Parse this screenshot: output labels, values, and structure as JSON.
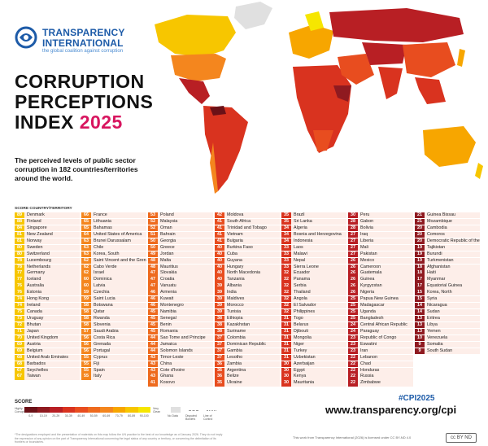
{
  "logo": {
    "line1": "TRANSPARENCY",
    "line2": "INTERNATIONAL",
    "tagline": "the global coalition against corruption"
  },
  "title": {
    "line1": "CORRUPTION",
    "line2": "PERCEPTIONS",
    "line3": "INDEX",
    "year": "2025"
  },
  "subtitle": "The perceived levels of public sector corruption in 182 countries/territories around the world.",
  "list_header": "SCORE  COUNTRY/TERRITORY",
  "colors": {
    "c90": "#f6e600",
    "c80": "#f7c600",
    "c70": "#f7a600",
    "c60": "#f4861e",
    "c50": "#ee6a1e",
    "c40": "#e84d1f",
    "c30": "#d9331f",
    "c20": "#b81f24",
    "c10": "#8f1a20",
    "c00": "#6b1117"
  },
  "columns": [
    {
      "color": "c80",
      "rows": [
        [
          "89",
          "Denmark"
        ],
        [
          "88",
          "Finland"
        ],
        [
          "84",
          "Singapore"
        ],
        [
          "81",
          "New Zealand"
        ],
        [
          "81",
          "Norway"
        ],
        [
          "80",
          "Sweden"
        ],
        [
          "80",
          "Switzerland"
        ],
        [
          "78",
          "Luxembourg"
        ],
        [
          "78",
          "Netherlands"
        ],
        [
          "77",
          "Germany"
        ],
        [
          "77",
          "Iceland"
        ],
        [
          "76",
          "Australia"
        ],
        [
          "76",
          "Estonia"
        ],
        [
          "74",
          "Hong Kong"
        ],
        [
          "74",
          "Ireland"
        ],
        [
          "75",
          "Canada"
        ],
        [
          "73",
          "Uruguay"
        ],
        [
          "72",
          "Bhutan"
        ],
        [
          "71",
          "Japan"
        ],
        [
          "70",
          "United Kingdom"
        ],
        [
          "69",
          "Austria"
        ],
        [
          "69",
          "Belgium"
        ],
        [
          "68",
          "United Arab Emirates"
        ],
        [
          "68",
          "Barbados"
        ],
        [
          "67",
          "Seychelles"
        ],
        [
          "67",
          "Taiwan"
        ]
      ]
    },
    {
      "color": "c60",
      "rows": [
        [
          "66",
          "France"
        ],
        [
          "65",
          "Lithuania"
        ],
        [
          "65",
          "Bahamas"
        ],
        [
          "64",
          "United States of America"
        ],
        [
          "63",
          "Brunei Darussalam"
        ],
        [
          "63",
          "Chile"
        ],
        [
          "63",
          "Korea, South"
        ],
        [
          "62",
          "Saint Vincent and the Grenadines"
        ],
        [
          "62",
          "Cabo Verde"
        ],
        [
          "62",
          "Israel"
        ],
        [
          "60",
          "Dominica"
        ],
        [
          "60",
          "Latvia"
        ],
        [
          "59",
          "Czechia"
        ],
        [
          "59",
          "Saint Lucia"
        ],
        [
          "58",
          "Botswana"
        ],
        [
          "58",
          "Qatar"
        ],
        [
          "58",
          "Rwanda"
        ],
        [
          "58",
          "Slovenia"
        ],
        [
          "57",
          "Saudi Arabia"
        ],
        [
          "56",
          "Costa Rica"
        ],
        [
          "56",
          "Grenada"
        ],
        [
          "56",
          "Portugal"
        ],
        [
          "55",
          "Cyprus"
        ],
        [
          "55",
          "Fiji"
        ],
        [
          "55",
          "Spain"
        ],
        [
          "55",
          "Italy"
        ]
      ]
    },
    {
      "color": "c50",
      "rows": [
        [
          "53",
          "Poland"
        ],
        [
          "52",
          "Malaysia"
        ],
        [
          "52",
          "Oman"
        ],
        [
          "51",
          "Bahrain"
        ],
        [
          "50",
          "Georgia"
        ],
        [
          "50",
          "Greece"
        ],
        [
          "49",
          "Jordan"
        ],
        [
          "48",
          "Malta"
        ],
        [
          "48",
          "Mauritius"
        ],
        [
          "47",
          "Slovakia"
        ],
        [
          "47",
          "Croatia"
        ],
        [
          "47",
          "Vanuatu"
        ],
        [
          "46",
          "Armenia"
        ],
        [
          "46",
          "Kuwait"
        ],
        [
          "46",
          "Montenegro"
        ],
        [
          "45",
          "Namibia"
        ],
        [
          "45",
          "Senegal"
        ],
        [
          "45",
          "Benin"
        ],
        [
          "45",
          "Romania"
        ],
        [
          "44",
          "Sao Tome and Principe"
        ],
        [
          "44",
          "Jamaica"
        ],
        [
          "44",
          "Solomon Islands"
        ],
        [
          "43",
          "Timor-Leste"
        ],
        [
          "43",
          "China"
        ],
        [
          "43",
          "Cote d'Ivoire"
        ],
        [
          "43",
          "Ghana"
        ],
        [
          "41",
          "Kosovo"
        ]
      ]
    },
    {
      "color": "c40",
      "rows": [
        [
          "42",
          "Moldova"
        ],
        [
          "41",
          "South Africa"
        ],
        [
          "41",
          "Trinidad and Tobago"
        ],
        [
          "41",
          "Vietnam"
        ],
        [
          "41",
          "Bulgaria"
        ],
        [
          "40",
          "Burkina Faso"
        ],
        [
          "40",
          "Cuba"
        ],
        [
          "40",
          "Guyana"
        ],
        [
          "40",
          "Hungary"
        ],
        [
          "40",
          "North Macedonia"
        ],
        [
          "40",
          "Tanzania"
        ],
        [
          "39",
          "Albania"
        ],
        [
          "39",
          "India"
        ],
        [
          "39",
          "Maldives"
        ],
        [
          "39",
          "Morocco"
        ],
        [
          "39",
          "Tunisia"
        ],
        [
          "38",
          "Ethiopia"
        ],
        [
          "38",
          "Kazakhstan"
        ],
        [
          "38",
          "Suriname"
        ],
        [
          "37",
          "Colombia"
        ],
        [
          "37",
          "Dominican Republic"
        ],
        [
          "37",
          "Gambia"
        ],
        [
          "37",
          "Lesotho"
        ],
        [
          "36",
          "Zambia"
        ],
        [
          "36",
          "Argentina"
        ],
        [
          "36",
          "Belize"
        ],
        [
          "35",
          "Ukraine"
        ]
      ]
    },
    {
      "color": "c30",
      "rows": [
        [
          "35",
          "Brazil"
        ],
        [
          "35",
          "Sri Lanka"
        ],
        [
          "34",
          "Algeria"
        ],
        [
          "34",
          "Bosnia and Herzegovina"
        ],
        [
          "34",
          "Indonesia"
        ],
        [
          "33",
          "Laos"
        ],
        [
          "33",
          "Malawi"
        ],
        [
          "33",
          "Nepal"
        ],
        [
          "33",
          "Sierra Leone"
        ],
        [
          "32",
          "Ecuador"
        ],
        [
          "32",
          "Panama"
        ],
        [
          "32",
          "Serbia"
        ],
        [
          "32",
          "Thailand"
        ],
        [
          "32",
          "Angola"
        ],
        [
          "32",
          "El Salvador"
        ],
        [
          "32",
          "Philippines"
        ],
        [
          "31",
          "Togo"
        ],
        [
          "31",
          "Belarus"
        ],
        [
          "31",
          "Djibouti"
        ],
        [
          "31",
          "Mongolia"
        ],
        [
          "31",
          "Niger"
        ],
        [
          "31",
          "Turkey"
        ],
        [
          "31",
          "Uzbekistan"
        ],
        [
          "30",
          "Azerbaijan"
        ],
        [
          "30",
          "Egypt"
        ],
        [
          "30",
          "Kenya"
        ],
        [
          "30",
          "Mauritania"
        ]
      ]
    },
    {
      "color": "c20",
      "rows": [
        [
          "30",
          "Peru"
        ],
        [
          "28",
          "Gabon"
        ],
        [
          "28",
          "Bolivia"
        ],
        [
          "27",
          "Iraq"
        ],
        [
          "27",
          "Liberia"
        ],
        [
          "27",
          "Mali"
        ],
        [
          "27",
          "Pakistan"
        ],
        [
          "26",
          "Mexico"
        ],
        [
          "26",
          "Cameroon"
        ],
        [
          "26",
          "Guatemala"
        ],
        [
          "26",
          "Guinea"
        ],
        [
          "26",
          "Kyrgyzstan"
        ],
        [
          "26",
          "Nigeria"
        ],
        [
          "25",
          "Papua New Guinea"
        ],
        [
          "25",
          "Madagascar"
        ],
        [
          "25",
          "Uganda"
        ],
        [
          "25",
          "Bangladesh"
        ],
        [
          "24",
          "Central African Republic"
        ],
        [
          "24",
          "Paraguay"
        ],
        [
          "23",
          "Republic of Congo"
        ],
        [
          "23",
          "Eswatini"
        ],
        [
          "23",
          "Iran"
        ],
        [
          "22",
          "Lebanon"
        ],
        [
          "22",
          "Chad"
        ],
        [
          "22",
          "Honduras"
        ],
        [
          "22",
          "Russia"
        ],
        [
          "22",
          "Zimbabwe"
        ]
      ]
    },
    {
      "color": "c10",
      "rows": [
        [
          "21",
          "Guinea Bissau"
        ],
        [
          "21",
          "Mozambique"
        ],
        [
          "20",
          "Cambodia"
        ],
        [
          "20",
          "Comoros"
        ],
        [
          "20",
          "Democratic Republic of the Congo"
        ],
        [
          "19",
          "Tajikistan"
        ],
        [
          "19",
          "Burundi"
        ],
        [
          "19",
          "Turkmenistan"
        ],
        [
          "18",
          "Afghanistan"
        ],
        [
          "18",
          "Haiti"
        ],
        [
          "17",
          "Myanmar"
        ],
        [
          "17",
          "Equatorial Guinea"
        ],
        [
          "15",
          "Korea, North"
        ],
        [
          "15",
          "Syria"
        ],
        [
          "14",
          "Nicaragua"
        ],
        [
          "14",
          "Sudan"
        ],
        [
          "13",
          "Eritrea"
        ],
        [
          "13",
          "Libya"
        ],
        [
          "13",
          "Yemen"
        ],
        [
          "10",
          "Venezuela"
        ],
        [
          "9",
          "Somalia"
        ],
        [
          "9",
          "South Sudan"
        ]
      ]
    }
  ],
  "legend": {
    "title": "SCORE",
    "ticks": [
      "0-9",
      "10-19",
      "20-29",
      "30-39",
      "40-49",
      "50-59",
      "60-69",
      "70-79",
      "80-89",
      "90-100"
    ],
    "left_label": "Highly Corrupt",
    "right_label": "Very Clean",
    "no_data": "No Data",
    "disputed": "Disputed Borders",
    "lines": "Line of Control"
  },
  "hashtag": "#CPI2025",
  "url": "www.transparency.org/cpi",
  "footnote": "*The designations employed and the presentation of materials on this map follow the UN practice to the best of our knowledge as of January 2026. They do not imply the expression of any opinion on the part of Transparency International concerning the legal status of any country or territory, or concerning the delimitation of its frontiers or boundaries.",
  "license": "This work from Transparency International (2026) is licensed under CC BY-ND 4.0",
  "cc_badge": "cc BY ND"
}
